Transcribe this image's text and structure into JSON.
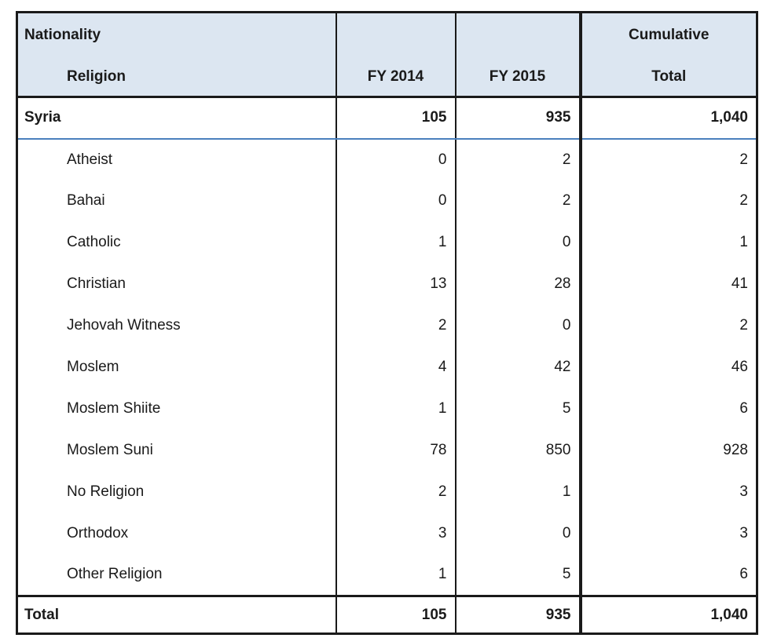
{
  "table": {
    "header": {
      "col1_line1": "Nationality",
      "col1_line2": "Religion",
      "col2": "FY 2014",
      "col3": "FY 2015",
      "col4_line1": "Cumulative",
      "col4_line2": "Total"
    },
    "nationality_row": {
      "label": "Syria",
      "fy2014": "105",
      "fy2015": "935",
      "cumulative": "1,040"
    },
    "religion_rows": [
      {
        "label": "Atheist",
        "fy2014": "0",
        "fy2015": "2",
        "cumulative": "2"
      },
      {
        "label": "Bahai",
        "fy2014": "0",
        "fy2015": "2",
        "cumulative": "2"
      },
      {
        "label": "Catholic",
        "fy2014": "1",
        "fy2015": "0",
        "cumulative": "1"
      },
      {
        "label": "Christian",
        "fy2014": "13",
        "fy2015": "28",
        "cumulative": "41"
      },
      {
        "label": "Jehovah Witness",
        "fy2014": "2",
        "fy2015": "0",
        "cumulative": "2"
      },
      {
        "label": "Moslem",
        "fy2014": "4",
        "fy2015": "42",
        "cumulative": "46"
      },
      {
        "label": "Moslem Shiite",
        "fy2014": "1",
        "fy2015": "5",
        "cumulative": "6"
      },
      {
        "label": "Moslem Suni",
        "fy2014": "78",
        "fy2015": "850",
        "cumulative": "928"
      },
      {
        "label": "No Religion",
        "fy2014": "2",
        "fy2015": "1",
        "cumulative": "3"
      },
      {
        "label": "Orthodox",
        "fy2014": "3",
        "fy2015": "0",
        "cumulative": "3"
      },
      {
        "label": "Other Religion",
        "fy2014": "1",
        "fy2015": "5",
        "cumulative": "6"
      }
    ],
    "total_row": {
      "label": "Total",
      "fy2014": "105",
      "fy2015": "935",
      "cumulative": "1,040"
    }
  },
  "colors": {
    "header_bg": "#dce6f1",
    "border_dark": "#1a1a1a",
    "divider_blue": "#4a80bd",
    "text": "#1a1a1a",
    "page_bg": "#ffffff"
  }
}
